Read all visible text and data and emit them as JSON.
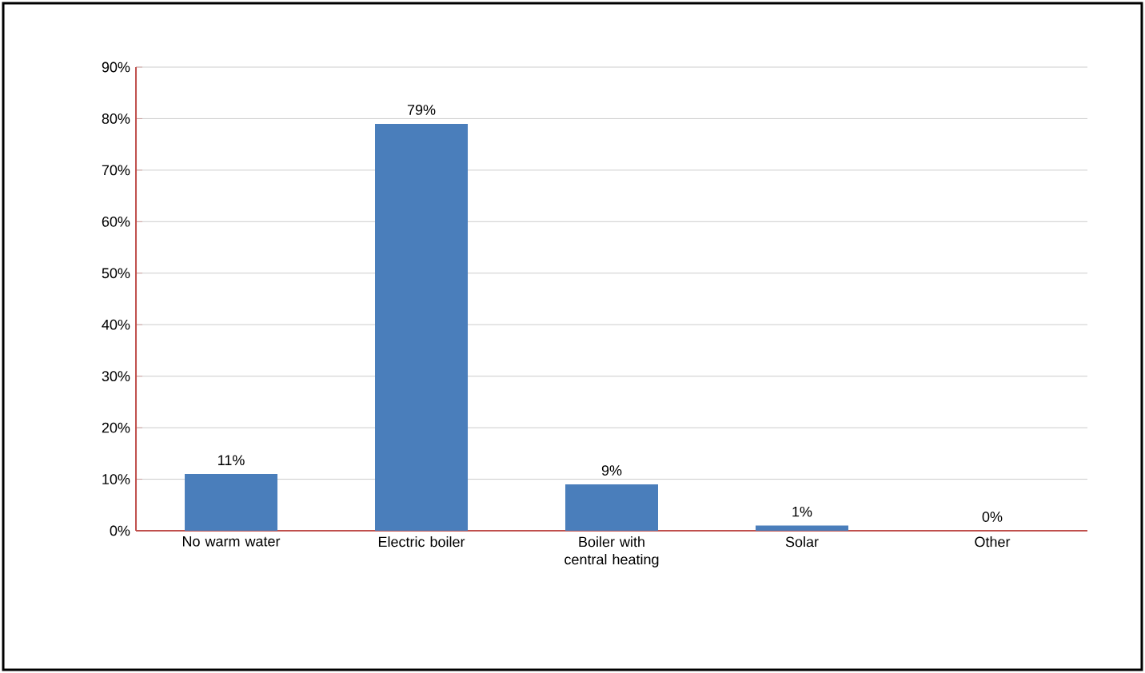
{
  "chart_data": {
    "type": "bar",
    "categories": [
      "No warm water",
      "Electric boiler",
      "Boiler with central heating",
      "Solar",
      "Other"
    ],
    "values": [
      11,
      79,
      9,
      1,
      0
    ],
    "value_labels": [
      "11%",
      "79%",
      "9%",
      "1%",
      "0%"
    ],
    "color": "#4a7ebb",
    "ylim": [
      0,
      90
    ],
    "yticks": [
      {
        "value": 0,
        "label": "0%"
      },
      {
        "value": 10,
        "label": "10%"
      },
      {
        "value": 20,
        "label": "20%"
      },
      {
        "value": 30,
        "label": "30%"
      },
      {
        "value": 40,
        "label": "40%"
      },
      {
        "value": 50,
        "label": "50%"
      },
      {
        "value": 60,
        "label": "60%"
      },
      {
        "value": 70,
        "label": "70%"
      },
      {
        "value": 80,
        "label": "80%"
      },
      {
        "value": 90,
        "label": "90%"
      }
    ],
    "grid": "y"
  }
}
